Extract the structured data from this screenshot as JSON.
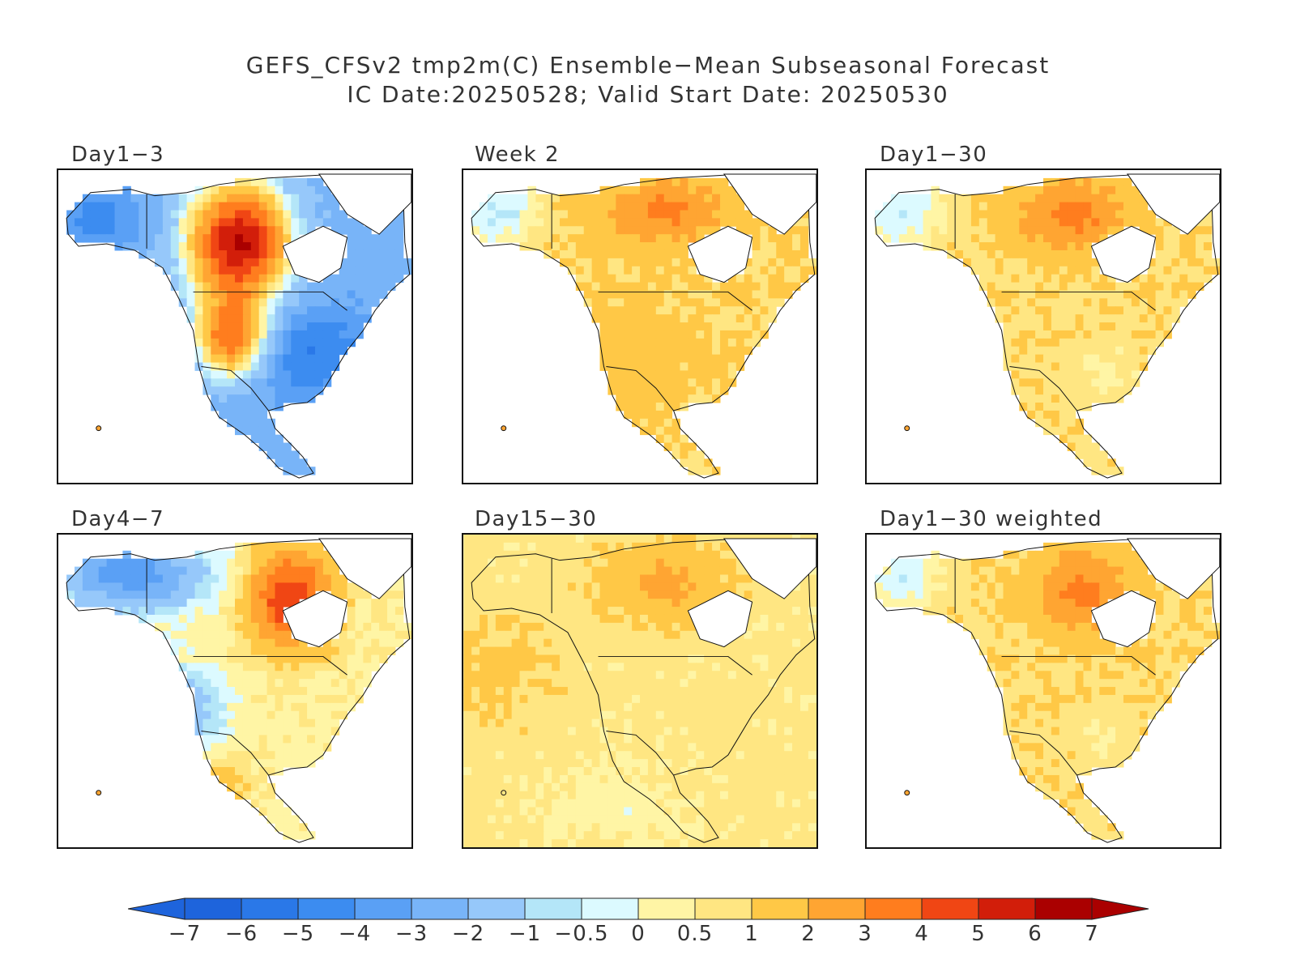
{
  "title": {
    "line1": "GEFS_CFSv2 tmp2m(C) Ensemble−Mean Subseasonal Forecast",
    "line2": "IC Date:20250528; Valid Start Date: 20250530"
  },
  "panels": [
    {
      "label": "Day1−3",
      "pattern": "day1_3"
    },
    {
      "label": "Week 2",
      "pattern": "week2"
    },
    {
      "label": "Day1−30",
      "pattern": "day1_30"
    },
    {
      "label": "Day4−7",
      "pattern": "day4_7"
    },
    {
      "label": "Day15−30",
      "pattern": "day15_30"
    },
    {
      "label": "Day1−30 weighted",
      "pattern": "day1_30w"
    }
  ],
  "colorbar": {
    "ticks": [
      "−7",
      "−6",
      "−5",
      "−4",
      "−3",
      "−2",
      "−1",
      "−0.5",
      "0",
      "0.5",
      "1",
      "2",
      "3",
      "4",
      "5",
      "6",
      "7"
    ],
    "colors": [
      "#1e64dc",
      "#2a78e8",
      "#3c8cf0",
      "#5aa0f5",
      "#78b4f8",
      "#96c8fa",
      "#b4e6f8",
      "#dcfaff",
      "#fff5a5",
      "#ffe682",
      "#ffc846",
      "#ffa532",
      "#ff7d1e",
      "#f04614",
      "#d21e0a",
      "#aa0000"
    ],
    "low_color": "#1e64dc",
    "high_color": "#aa0000"
  }
}
